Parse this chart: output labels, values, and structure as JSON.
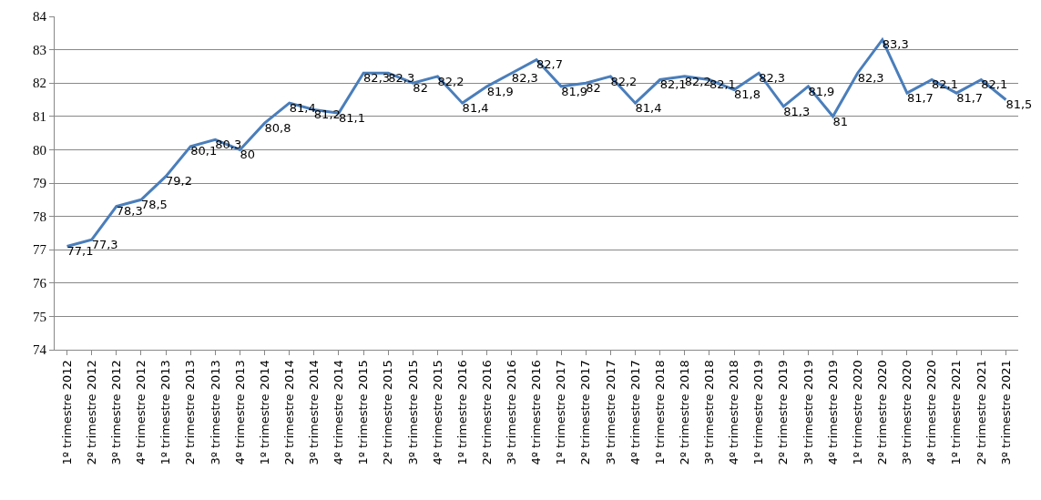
{
  "chart_data": {
    "type": "line",
    "categories": [
      "1º trimestre 2012",
      "2º trimestre 2012",
      "3º trimestre 2012",
      "4º trimestre 2012",
      "1º trimestre 2013",
      "2º trimestre 2013",
      "3º trimestre 2013",
      "4º trimestre 2013",
      "1º trimestre 2014",
      "2º trimestre 2014",
      "3º trimestre 2014",
      "4º trimestre 2014",
      "1º trimestre 2015",
      "2º trimestre 2015",
      "3º trimestre 2015",
      "4º trimestre 2015",
      "1º trimestre 2016",
      "2º trimestre 2016",
      "3º trimestre 2016",
      "4º trimestre 2016",
      "1º trimestre 2017",
      "2º trimestre 2017",
      "3º trimestre 2017",
      "4º trimestre 2017",
      "1º trimestre 2018",
      "2º trimestre 2018",
      "3º trimestre 2018",
      "4º trimestre 2018",
      "1º trimestre 2019",
      "2º trimestre 2019",
      "3º trimestre 2019",
      "4º trimestre 2019",
      "1º trimestre 2020",
      "2º trimestre 2020",
      "3º trimestre 2020",
      "4º trimestre 2020",
      "1º trimestre 2021",
      "2º trimestre 2021",
      "3º trimestre 2021"
    ],
    "series": [
      {
        "color": "#4a7ebb",
        "values": [
          77.1,
          77.3,
          78.3,
          78.5,
          79.2,
          80.1,
          80.3,
          80,
          80.8,
          81.4,
          81.2,
          81.1,
          82.3,
          82.3,
          82,
          82.2,
          81.4,
          81.9,
          82.3,
          82.7,
          81.9,
          82,
          82.2,
          81.4,
          82.1,
          82.2,
          82.1,
          81.8,
          82.3,
          81.3,
          81.9,
          81,
          82.3,
          83.3,
          81.7,
          82.1,
          81.7,
          82.1,
          81.5
        ],
        "value_labels": [
          "77,1",
          "77,3",
          "78,3",
          "78,5",
          "79,2",
          "80,1",
          "80,3",
          "80",
          "80,8",
          "81,4",
          "81,2",
          "81,1",
          "82,3",
          "82,3",
          "82",
          "82,2",
          "81,4",
          "81,9",
          "82,3",
          "82,7",
          "81,9",
          "82",
          "82,2",
          "81,4",
          "82,1",
          "82,2",
          "82,1",
          "81,8",
          "82,3",
          "81,3",
          "81,9",
          "81",
          "82,3",
          "83,3",
          "81,7",
          "82,1",
          "81,7",
          "82,1",
          "81,5"
        ]
      }
    ],
    "ylim": [
      74,
      84
    ],
    "yticks": [
      74,
      75,
      76,
      77,
      78,
      79,
      80,
      81,
      82,
      83,
      84
    ],
    "grid": "y",
    "legend": false,
    "marker": "none",
    "line_style": "solid"
  }
}
